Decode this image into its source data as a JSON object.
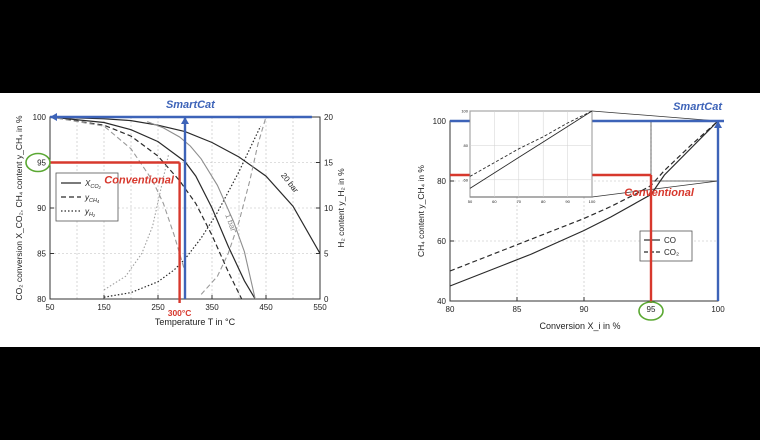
{
  "colors": {
    "background": "#000000",
    "panel": "#ffffff",
    "smartcat": "#3d63b8",
    "conventional": "#d7382d",
    "annotation_circle": "#5aa832",
    "grid": "#bdbdbd",
    "curve": "#2a2a2a"
  },
  "chart_data": [
    {
      "type": "line",
      "title": "",
      "xlabel": "Temperature T in °C",
      "ylabel": "CO₂ conversion X_CO₂, CH₄ content y_CH₄ in %",
      "y2label": "H₂ content y_H₂ in %",
      "xlim": [
        50,
        550
      ],
      "ylim": [
        80,
        100
      ],
      "y2lim": [
        0,
        20
      ],
      "x_ticks": [
        "50",
        "150",
        "250",
        "350",
        "450",
        "550"
      ],
      "x_minor_ticks": [
        "100",
        "200",
        "300",
        "400",
        "500"
      ],
      "y_ticks": [
        "80",
        "85",
        "90",
        "95",
        "100"
      ],
      "y2_ticks": [
        "0",
        "5",
        "10",
        "15",
        "20"
      ],
      "grid": true,
      "legend_position": "middle-left",
      "legend": [
        "X_CO₂",
        "y_CH₄",
        "y_H₂"
      ],
      "curve_labels": [
        "20 bar",
        "1 bar"
      ],
      "annotations": {
        "smartcat": "SmartCat",
        "conventional": "Conventional",
        "temperature_marker": "300°C",
        "circled_value": "95"
      },
      "series": [
        {
          "name": "X_CO₂ (20 bar)",
          "style": "solid",
          "x": [
            50,
            150,
            200,
            250,
            300,
            350,
            400,
            450,
            500,
            550
          ],
          "y": [
            100,
            99.8,
            99.6,
            99.1,
            98.4,
            97.2,
            95.6,
            93.5,
            90.2,
            85
          ]
        },
        {
          "name": "X_CO₂ (1 bar)",
          "style": "solid",
          "x": [
            50,
            150,
            200,
            250,
            300,
            320,
            350,
            380,
            410,
            430
          ],
          "y": [
            100,
            99.4,
            98.6,
            97.3,
            95.1,
            93.5,
            90,
            85.8,
            82,
            80
          ]
        },
        {
          "name": "y_CH₄ (1 bar)",
          "style": "dashed",
          "x": [
            50,
            150,
            200,
            250,
            290,
            320,
            350,
            380,
            405
          ],
          "y": [
            100,
            99.1,
            97.9,
            95.7,
            93,
            90.5,
            87,
            83,
            80
          ]
        },
        {
          "name": "y_H₂ (1 bar)",
          "style": "dotted",
          "axis": "y2",
          "x": [
            150,
            200,
            250,
            280,
            300,
            330,
            360,
            400,
            420,
            440
          ],
          "y": [
            0.2,
            0.7,
            1.9,
            3.2,
            4.4,
            6.7,
            9.5,
            14,
            16.5,
            19
          ]
        },
        {
          "name": "X_CO₂ (1 bar, gray)",
          "style": "solid-gray",
          "x": [
            230,
            260,
            290,
            310,
            330,
            360,
            390,
            410,
            430
          ],
          "y": [
            99.5,
            98.8,
            97.8,
            96.8,
            95.4,
            92.5,
            88.5,
            85.2,
            80
          ]
        },
        {
          "name": "y_CH₄ (1 bar, gray)",
          "style": "dashed-gray",
          "x": [
            50,
            150,
            200,
            240,
            260,
            280,
            300
          ],
          "y": [
            100,
            99,
            96.5,
            93,
            90.5,
            87,
            83
          ]
        },
        {
          "name": "y_H₂ (gray)",
          "style": "dotted-gray",
          "axis": "y2",
          "x": [
            150,
            190,
            220,
            240,
            255,
            270
          ],
          "y": [
            1,
            2.5,
            5,
            8,
            12,
            16
          ]
        },
        {
          "name": "y_H₂ (20 bar)",
          "style": "dashed-gray",
          "axis": "y2",
          "x": [
            330,
            360,
            380,
            400,
            420,
            435,
            450
          ],
          "y": [
            0.5,
            2.5,
            5,
            8.5,
            13,
            17,
            20
          ]
        }
      ]
    },
    {
      "type": "line",
      "title": "",
      "xlabel": "Conversion X_i in %",
      "ylabel": "CH₄ content y_CH₄ in %",
      "xlim": [
        80,
        100
      ],
      "ylim": [
        40,
        100
      ],
      "x_ticks": [
        "80",
        "85",
        "90",
        "95",
        "100"
      ],
      "y_ticks": [
        "40",
        "60",
        "80",
        "100"
      ],
      "grid": true,
      "legend_position": "bottom-right",
      "legend": [
        "CO",
        "CO₂"
      ],
      "annotations": {
        "smartcat": "SmartCat",
        "conventional": "Conventional",
        "circled_value": "95"
      },
      "series": [
        {
          "name": "CO",
          "style": "solid",
          "x": [
            80,
            82,
            84,
            86,
            88,
            90,
            92,
            94,
            95,
            96,
            98,
            100
          ],
          "y": [
            45,
            48.5,
            52,
            55.5,
            59.5,
            63.5,
            68,
            73,
            75.5,
            82,
            91,
            100
          ]
        },
        {
          "name": "CO₂",
          "style": "dashed",
          "x": [
            80,
            82,
            84,
            86,
            88,
            90,
            92,
            94,
            95,
            96,
            98,
            100
          ],
          "y": [
            50,
            53.5,
            57,
            60.5,
            64,
            67.5,
            71.5,
            76,
            78.5,
            83.5,
            92,
            100
          ]
        }
      ],
      "inset": {
        "x_ticks": [
          "50",
          "60",
          "70",
          "80",
          "90",
          "100"
        ],
        "y_ticks": [
          "60",
          "80",
          "100"
        ],
        "series": [
          {
            "name": "CO",
            "style": "solid",
            "x": [
              50,
              60,
              70,
              80,
              90,
              100
            ],
            "y": [
              55,
              64,
              73,
              82,
              91,
              100
            ]
          },
          {
            "name": "CO₂",
            "style": "dashed",
            "x": [
              50,
              60,
              70,
              80,
              90,
              100
            ],
            "y": [
              62,
              70,
              78,
              85,
              93,
              100
            ]
          }
        ]
      }
    }
  ]
}
